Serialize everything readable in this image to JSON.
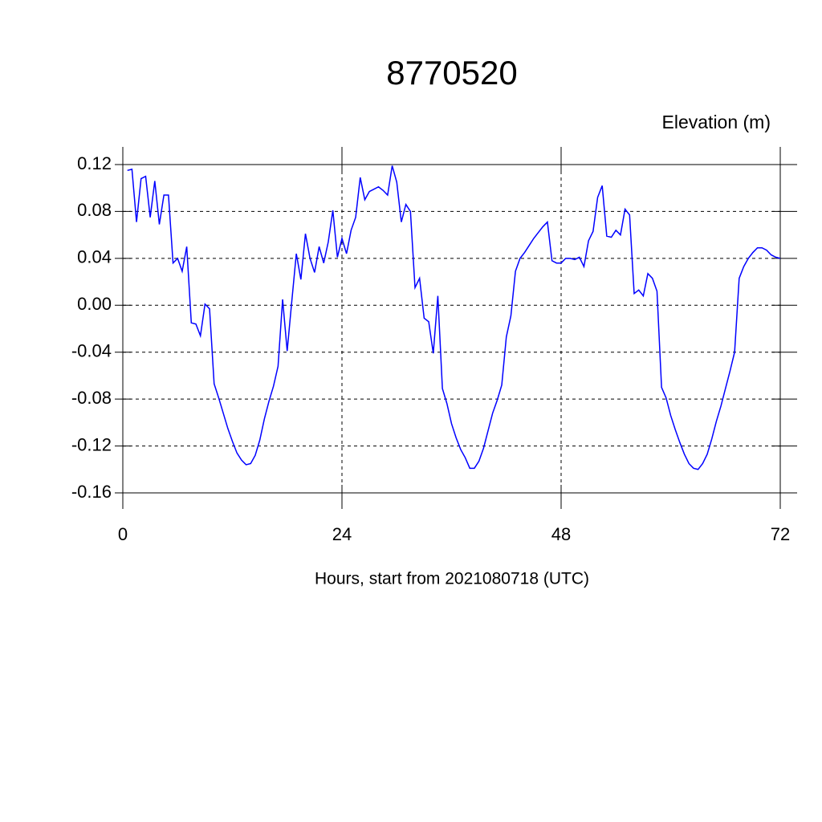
{
  "chart_data": {
    "type": "line",
    "title": "8770520",
    "ylabel": "Elevation (m)",
    "xlabel": "Hours, start from 2021080718 (UTC)",
    "x": [
      0.5,
      1,
      1.5,
      2,
      2.5,
      3,
      3.5,
      4,
      4.5,
      5,
      5.5,
      6,
      6.5,
      7,
      7.5,
      8,
      8.5,
      9,
      9.5,
      10,
      10.5,
      11,
      11.5,
      12,
      12.5,
      13,
      13.5,
      14,
      14.5,
      15,
      15.5,
      16,
      16.5,
      17,
      17.5,
      18,
      18.5,
      19,
      19.5,
      20,
      20.5,
      21,
      21.5,
      22,
      22.5,
      23,
      23.5,
      24,
      24.5,
      25,
      25.5,
      26,
      26.5,
      27,
      27.5,
      28,
      28.5,
      29,
      29.5,
      30,
      30.5,
      31,
      31.5,
      32,
      32.5,
      33,
      33.5,
      34,
      34.5,
      35,
      35.5,
      36,
      36.5,
      37,
      37.5,
      38,
      38.5,
      39,
      39.5,
      40,
      40.5,
      41,
      41.5,
      42,
      42.5,
      43,
      43.5,
      44,
      44.5,
      45,
      45.5,
      46,
      46.5,
      47,
      47.5,
      48,
      48.5,
      49,
      49.5,
      50,
      50.5,
      51,
      51.5,
      52,
      52.5,
      53,
      53.5,
      54,
      54.5,
      55,
      55.5,
      56,
      56.5,
      57,
      57.5,
      58,
      58.5,
      59,
      59.5,
      60,
      60.5,
      61,
      61.5,
      62,
      62.5,
      63,
      63.5,
      64,
      64.5,
      65,
      65.5,
      66,
      66.5,
      67,
      67.5,
      68,
      68.5,
      69,
      69.5,
      70,
      70.5,
      71,
      71.5,
      72
    ],
    "series": [
      {
        "name": "Elevation",
        "color": "#0000ff",
        "values": [
          0.115,
          0.116,
          0.071,
          0.108,
          0.11,
          0.075,
          0.106,
          0.069,
          0.094,
          0.094,
          0.036,
          0.04,
          0.029,
          0.05,
          -0.015,
          -0.016,
          -0.026,
          0.001,
          -0.003,
          -0.067,
          -0.079,
          -0.092,
          -0.105,
          -0.116,
          -0.126,
          -0.132,
          -0.136,
          -0.135,
          -0.128,
          -0.115,
          -0.097,
          -0.082,
          -0.069,
          -0.052,
          0.005,
          -0.039,
          0.003,
          0.044,
          0.022,
          0.061,
          0.04,
          0.028,
          0.05,
          0.036,
          0.054,
          0.081,
          0.041,
          0.057,
          0.044,
          0.064,
          0.075,
          0.109,
          0.09,
          0.097,
          0.099,
          0.101,
          0.098,
          0.094,
          0.119,
          0.105,
          0.071,
          0.086,
          0.08,
          0.015,
          0.023,
          -0.011,
          -0.014,
          -0.041,
          0.008,
          -0.071,
          -0.084,
          -0.101,
          -0.113,
          -0.123,
          -0.13,
          -0.139,
          -0.139,
          -0.133,
          -0.122,
          -0.107,
          -0.092,
          -0.081,
          -0.068,
          -0.027,
          -0.009,
          0.029,
          0.04,
          0.045,
          0.051,
          0.057,
          0.062,
          0.067,
          0.071,
          0.038,
          0.036,
          0.036,
          0.04,
          0.04,
          0.039,
          0.041,
          0.033,
          0.055,
          0.063,
          0.092,
          0.102,
          0.059,
          0.058,
          0.064,
          0.06,
          0.082,
          0.077,
          0.01,
          0.013,
          0.008,
          0.027,
          0.023,
          0.012,
          -0.07,
          -0.079,
          -0.094,
          -0.106,
          -0.117,
          -0.127,
          -0.135,
          -0.139,
          -0.14,
          -0.135,
          -0.127,
          -0.114,
          -0.099,
          -0.086,
          -0.071,
          -0.056,
          -0.04,
          0.023,
          0.033,
          0.04,
          0.045,
          0.049,
          0.049,
          0.047,
          0.043,
          0.041,
          0.04
        ]
      }
    ],
    "xlim": [
      0,
      72
    ],
    "xticks": [
      0,
      24,
      48,
      72
    ],
    "ylim": [
      -0.16,
      0.12
    ],
    "yticks": [
      {
        "value": -0.16,
        "label": "-0.16"
      },
      {
        "value": -0.12,
        "label": "-0.12"
      },
      {
        "value": -0.08,
        "label": "-0.08"
      },
      {
        "value": -0.04,
        "label": "-0.04"
      },
      {
        "value": 0,
        "label": "0.00"
      },
      {
        "value": 0.04,
        "label": "0.04"
      },
      {
        "value": 0.08,
        "label": "0.08"
      },
      {
        "value": 0.12,
        "label": "0.12"
      }
    ],
    "grid": true
  }
}
